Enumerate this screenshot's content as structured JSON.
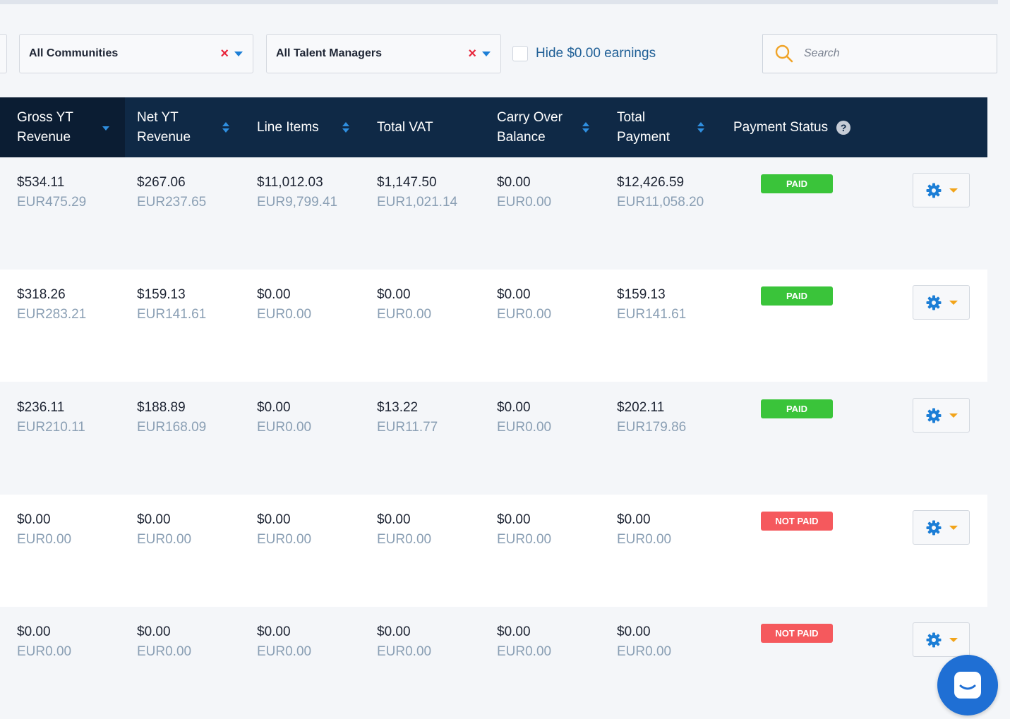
{
  "filters": {
    "communities": {
      "label": "All Communities",
      "clear": "×"
    },
    "talent_managers": {
      "label": "All Talent Managers",
      "clear": "×"
    },
    "hide_zero_label": "Hide $0.00 earnings",
    "search_placeholder": "Search"
  },
  "columns": [
    {
      "label": "Gross YT Revenue",
      "sort": "desc"
    },
    {
      "label": "Net YT Revenue",
      "sort": "both"
    },
    {
      "label": "Line Items",
      "sort": "both"
    },
    {
      "label": "Total VAT",
      "sort": "none"
    },
    {
      "label": "Carry Over Balance",
      "sort": "both"
    },
    {
      "label": "Total Payment",
      "sort": "both"
    },
    {
      "label": "Payment Status",
      "sort": "none"
    }
  ],
  "help_icon": "?",
  "rows": [
    {
      "gross": {
        "usd": "$534.11",
        "eur": "EUR475.29"
      },
      "net": {
        "usd": "$267.06",
        "eur": "EUR237.65"
      },
      "line_items": {
        "usd": "$11,012.03",
        "eur": "EUR9,799.41"
      },
      "vat": {
        "usd": "$1,147.50",
        "eur": "EUR1,021.14"
      },
      "carry_over": {
        "usd": "$0.00",
        "eur": "EUR0.00"
      },
      "total_payment": {
        "usd": "$12,426.59",
        "eur": "EUR11,058.20"
      },
      "status": "PAID"
    },
    {
      "gross": {
        "usd": "$318.26",
        "eur": "EUR283.21"
      },
      "net": {
        "usd": "$159.13",
        "eur": "EUR141.61"
      },
      "line_items": {
        "usd": "$0.00",
        "eur": "EUR0.00"
      },
      "vat": {
        "usd": "$0.00",
        "eur": "EUR0.00"
      },
      "carry_over": {
        "usd": "$0.00",
        "eur": "EUR0.00"
      },
      "total_payment": {
        "usd": "$159.13",
        "eur": "EUR141.61"
      },
      "status": "PAID"
    },
    {
      "gross": {
        "usd": "$236.11",
        "eur": "EUR210.11"
      },
      "net": {
        "usd": "$188.89",
        "eur": "EUR168.09"
      },
      "line_items": {
        "usd": "$0.00",
        "eur": "EUR0.00"
      },
      "vat": {
        "usd": "$13.22",
        "eur": "EUR11.77"
      },
      "carry_over": {
        "usd": "$0.00",
        "eur": "EUR0.00"
      },
      "total_payment": {
        "usd": "$202.11",
        "eur": "EUR179.86"
      },
      "status": "PAID"
    },
    {
      "gross": {
        "usd": "$0.00",
        "eur": "EUR0.00"
      },
      "net": {
        "usd": "$0.00",
        "eur": "EUR0.00"
      },
      "line_items": {
        "usd": "$0.00",
        "eur": "EUR0.00"
      },
      "vat": {
        "usd": "$0.00",
        "eur": "EUR0.00"
      },
      "carry_over": {
        "usd": "$0.00",
        "eur": "EUR0.00"
      },
      "total_payment": {
        "usd": "$0.00",
        "eur": "EUR0.00"
      },
      "status": "NOT PAID"
    },
    {
      "gross": {
        "usd": "$0.00",
        "eur": "EUR0.00"
      },
      "net": {
        "usd": "$0.00",
        "eur": "EUR0.00"
      },
      "line_items": {
        "usd": "$0.00",
        "eur": "EUR0.00"
      },
      "vat": {
        "usd": "$0.00",
        "eur": "EUR0.00"
      },
      "carry_over": {
        "usd": "$0.00",
        "eur": "EUR0.00"
      },
      "total_payment": {
        "usd": "$0.00",
        "eur": "EUR0.00"
      },
      "status": "NOT PAID"
    }
  ],
  "colors": {
    "header_bg": "#0f2946",
    "paid": "#3ac43a",
    "not_paid": "#f5595d",
    "accent_blue": "#1c7ed6",
    "chat": "#1f6fd4"
  },
  "icons": {
    "search": "search-icon",
    "gear": "gear-icon",
    "chat": "chat-icon",
    "help": "question-icon"
  }
}
